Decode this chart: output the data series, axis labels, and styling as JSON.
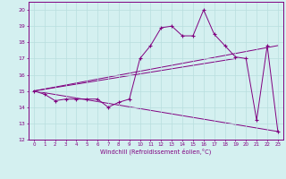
{
  "xlabel": "Windchill (Refroidissement éolien,°C)",
  "bg_color": "#d4f0f0",
  "line_color": "#800080",
  "grid_color": "#b8dede",
  "xlim": [
    -0.5,
    23.5
  ],
  "ylim": [
    12,
    20.5
  ],
  "yticks": [
    12,
    13,
    14,
    15,
    16,
    17,
    18,
    19,
    20
  ],
  "xticks": [
    0,
    1,
    2,
    3,
    4,
    5,
    6,
    7,
    8,
    9,
    10,
    11,
    12,
    13,
    14,
    15,
    16,
    17,
    18,
    19,
    20,
    21,
    22,
    23
  ],
  "series1_x": [
    0,
    1,
    2,
    3,
    4,
    5,
    6,
    7,
    8,
    9,
    10,
    11,
    12,
    13,
    14,
    15,
    16,
    17,
    18,
    19,
    20,
    21,
    22,
    23
  ],
  "series1_y": [
    15.0,
    14.8,
    14.4,
    14.5,
    14.5,
    14.5,
    14.5,
    14.0,
    14.3,
    14.5,
    17.0,
    17.8,
    18.9,
    19.0,
    18.4,
    18.4,
    20.0,
    18.5,
    17.8,
    17.1,
    17.0,
    13.2,
    17.8,
    12.5
  ],
  "trend1_x": [
    0,
    23
  ],
  "trend1_y": [
    15.0,
    17.8
  ],
  "trend2_x": [
    0,
    23
  ],
  "trend2_y": [
    15.0,
    12.5
  ],
  "trend3_x": [
    0,
    19
  ],
  "trend3_y": [
    15.0,
    17.0
  ]
}
